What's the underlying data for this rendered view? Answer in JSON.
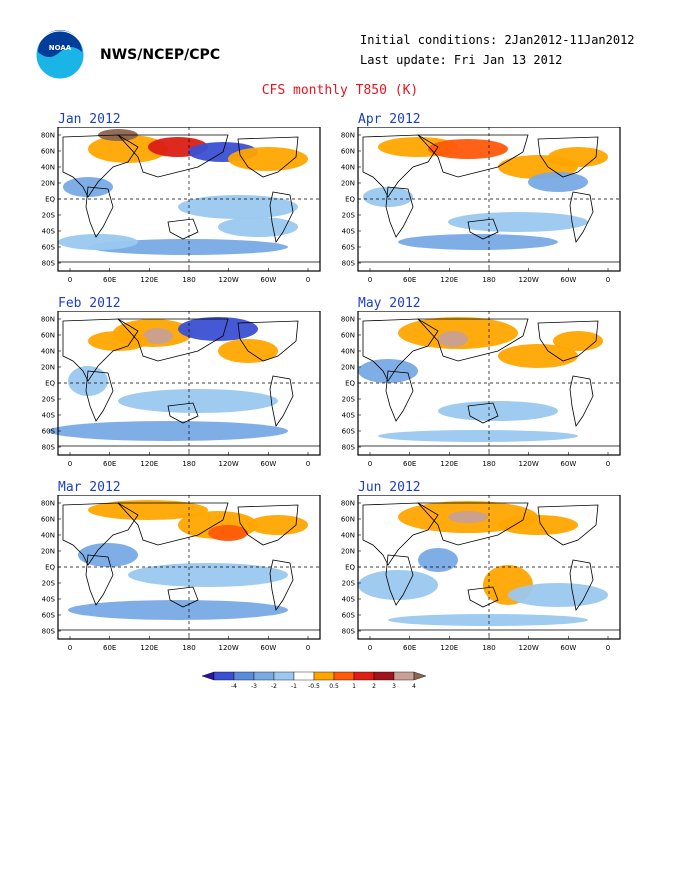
{
  "header": {
    "org": "NWS/NCEP/CPC",
    "init_label": "Initial conditions: 2Jan2012-11Jan2012",
    "update_label": "Last update: Fri Jan 13 2012",
    "title": "CFS monthly T850 (K)"
  },
  "logo": {
    "text": "NOAA",
    "icon": "noaa-logo-icon"
  },
  "panels": [
    {
      "label": "Jan 2012"
    },
    {
      "label": "Apr 2012"
    },
    {
      "label": "Feb 2012"
    },
    {
      "label": "May 2012"
    },
    {
      "label": "Mar 2012"
    },
    {
      "label": "Jun 2012"
    }
  ],
  "lat_labels": [
    "80N",
    "60N",
    "40N",
    "20N",
    "EQ",
    "20S",
    "40S",
    "60S",
    "80S"
  ],
  "lon_labels": [
    "0",
    "60E",
    "120E",
    "180",
    "120W",
    "60W",
    "0"
  ],
  "colorbar": {
    "tick_labels": [
      "-4",
      "-3",
      "-2",
      "-1",
      "-0.5",
      "0.5",
      "1",
      "2",
      "3",
      "4"
    ],
    "colors": [
      "#2d14a0",
      "#3c50d2",
      "#5a8cdc",
      "#78aae6",
      "#9ac8f0",
      "#ffffff",
      "#ffa500",
      "#ff5a0a",
      "#dc1e14",
      "#a0141e",
      "#c8a096",
      "#8c6450"
    ]
  }
}
